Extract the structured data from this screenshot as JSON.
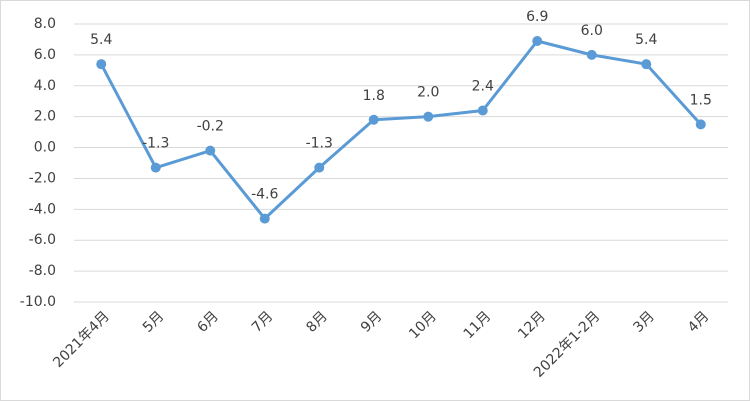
{
  "chart_data": {
    "type": "line",
    "categories": [
      "2021年4月",
      "5月",
      "6月",
      "7月",
      "8月",
      "9月",
      "10月",
      "11月",
      "12月",
      "2022年1-2月",
      "3月",
      "4月"
    ],
    "series": [
      {
        "color": "#5b9bd5",
        "values": [
          5.4,
          -1.3,
          -0.2,
          -4.6,
          -1.3,
          1.8,
          2.0,
          2.4,
          6.9,
          6.0,
          5.4,
          1.5
        ],
        "value_labels": [
          "5.4",
          "-1.3",
          "-0.2",
          "-4.6",
          "-1.3",
          "1.8",
          "2.0",
          "2.4",
          "6.9",
          "6.0",
          "5.4",
          "1.5"
        ]
      }
    ],
    "ylim": [
      -10,
      8
    ],
    "yticks": [
      {
        "value": -10,
        "label": "-10.0"
      },
      {
        "value": -8,
        "label": "-8.0"
      },
      {
        "value": -6,
        "label": "-6.0"
      },
      {
        "value": -4,
        "label": "-4.0"
      },
      {
        "value": -2,
        "label": "-2.0"
      },
      {
        "value": 0,
        "label": "0.0"
      },
      {
        "value": 2,
        "label": "2.0"
      },
      {
        "value": 4,
        "label": "4.0"
      },
      {
        "value": 6,
        "label": "6.0"
      },
      {
        "value": 8,
        "label": "8.0"
      }
    ],
    "grid": true
  }
}
